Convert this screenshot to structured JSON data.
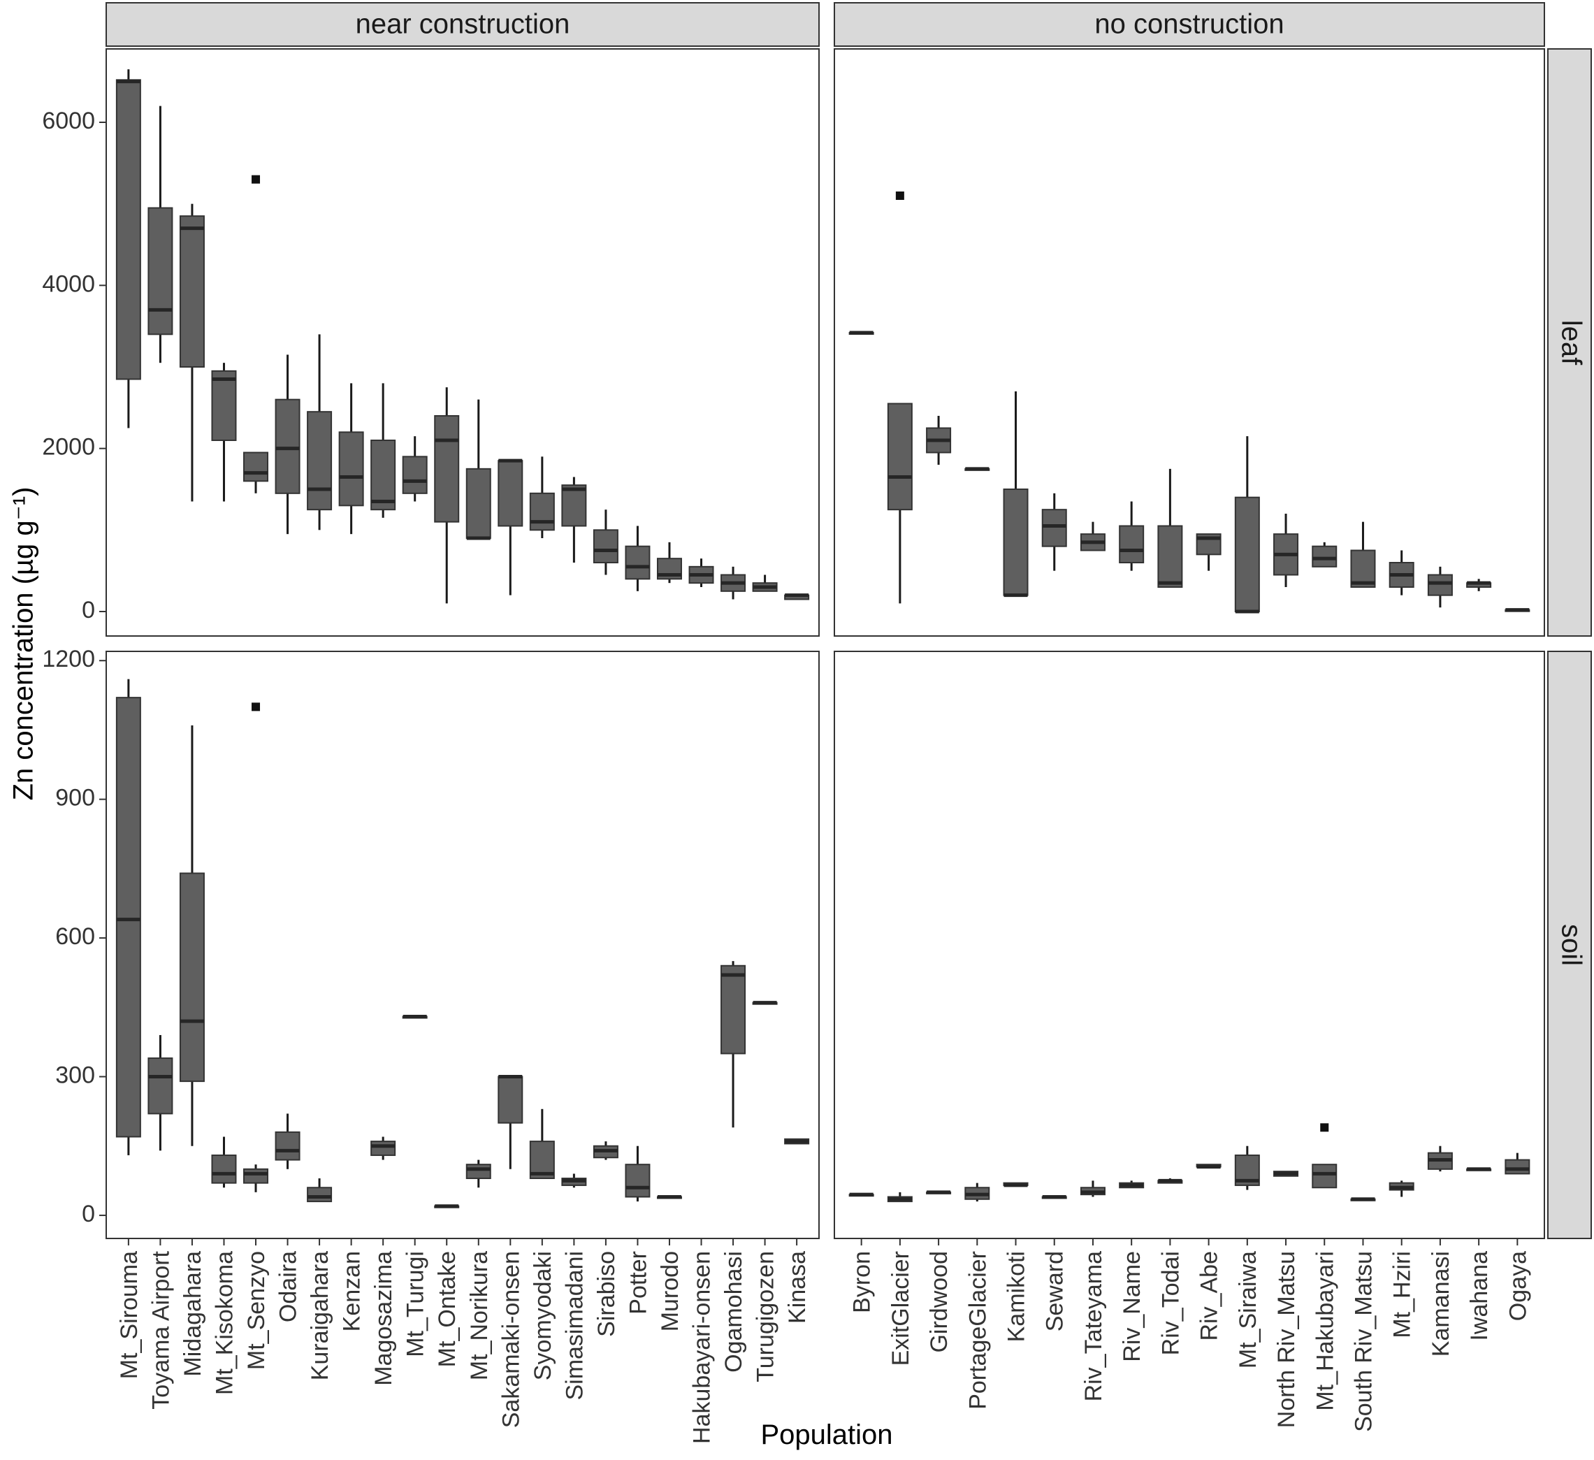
{
  "chart_data": {
    "type": "boxplot",
    "xlabel": "Population",
    "ylabel": "Zn concentration (µg g⁻¹)",
    "facet_columns": [
      "near construction",
      "no construction"
    ],
    "facet_rows": [
      "leaf",
      "soil"
    ],
    "rows": [
      {
        "label": "leaf",
        "ylim": [
          -300,
          6900
        ],
        "ticks": [
          0,
          2000,
          4000,
          6000
        ]
      },
      {
        "label": "soil",
        "ylim": [
          -50,
          1220
        ],
        "ticks": [
          0,
          300,
          600,
          900,
          1200
        ]
      }
    ],
    "columns": [
      {
        "label": "near construction",
        "categories": [
          "Mt_Sirouma",
          "Toyama Airport",
          "Midagahara",
          "Mt_Kisokoma",
          "Mt_Senzyo",
          "Odaira",
          "Kuraigahara",
          "Kenzan",
          "Magosazima",
          "Mt_Turugi",
          "Mt_Ontake",
          "Mt_Norikura",
          "Sakamaki-onsen",
          "Syomyodaki",
          "Simasimadani",
          "Sirabiso",
          "Potter",
          "Murodo",
          "Hakubayari-onsen",
          "Ogamohasi",
          "Turugigozen",
          "Kinasa"
        ],
        "leaf": [
          {
            "category": "Mt_Sirouma",
            "min": 2250,
            "q1": 2850,
            "median": 6500,
            "q3": 6520,
            "max": 6650
          },
          {
            "category": "Toyama Airport",
            "min": 3050,
            "q1": 3400,
            "median": 3700,
            "q3": 4950,
            "max": 6200
          },
          {
            "category": "Midagahara",
            "min": 1350,
            "q1": 3000,
            "median": 4700,
            "q3": 4850,
            "max": 5000
          },
          {
            "category": "Mt_Kisokoma",
            "min": 1350,
            "q1": 2100,
            "median": 2850,
            "q3": 2950,
            "max": 3050
          },
          {
            "category": "Mt_Senzyo",
            "min": 1450,
            "q1": 1600,
            "median": 1700,
            "q3": 1950,
            "max": 1950,
            "outliers": [
              5300
            ]
          },
          {
            "category": "Odaira",
            "min": 950,
            "q1": 1450,
            "median": 2000,
            "q3": 2600,
            "max": 3150
          },
          {
            "category": "Kuraigahara",
            "min": 1000,
            "q1": 1250,
            "median": 1500,
            "q3": 2450,
            "max": 3400
          },
          {
            "category": "Kenzan",
            "min": 950,
            "q1": 1300,
            "median": 1650,
            "q3": 2200,
            "max": 2800
          },
          {
            "category": "Magosazima",
            "min": 1150,
            "q1": 1250,
            "median": 1350,
            "q3": 2100,
            "max": 2800
          },
          {
            "category": "Mt_Turugi",
            "min": 1350,
            "q1": 1450,
            "median": 1600,
            "q3": 1900,
            "max": 2150
          },
          {
            "category": "Mt_Ontake",
            "min": 100,
            "q1": 1100,
            "median": 2100,
            "q3": 2400,
            "max": 2750
          },
          {
            "category": "Mt_Norikura",
            "min": 900,
            "q1": 900,
            "median": 900,
            "q3": 1750,
            "max": 2600
          },
          {
            "category": "Sakamaki-onsen",
            "min": 200,
            "q1": 1050,
            "median": 1850,
            "q3": 1850,
            "max": 1850
          },
          {
            "category": "Syomyodaki",
            "min": 900,
            "q1": 1000,
            "median": 1100,
            "q3": 1450,
            "max": 1900
          },
          {
            "category": "Simasimadani",
            "min": 600,
            "q1": 1050,
            "median": 1500,
            "q3": 1550,
            "max": 1650
          },
          {
            "category": "Sirabiso",
            "min": 450,
            "q1": 600,
            "median": 750,
            "q3": 1000,
            "max": 1250
          },
          {
            "category": "Potter",
            "min": 250,
            "q1": 400,
            "median": 550,
            "q3": 800,
            "max": 1050
          },
          {
            "category": "Murodo",
            "min": 350,
            "q1": 400,
            "median": 450,
            "q3": 650,
            "max": 850
          },
          {
            "category": "Hakubayari-onsen",
            "min": 300,
            "q1": 350,
            "median": 450,
            "q3": 550,
            "max": 650
          },
          {
            "category": "Ogamohasi",
            "min": 150,
            "q1": 250,
            "median": 350,
            "q3": 450,
            "max": 550
          },
          {
            "category": "Turugigozen",
            "min": 250,
            "q1": 250,
            "median": 300,
            "q3": 350,
            "max": 450
          },
          {
            "category": "Kinasa",
            "min": 150,
            "q1": 150,
            "median": 200,
            "q3": 200,
            "max": 200
          }
        ],
        "soil": [
          {
            "category": "Mt_Sirouma",
            "min": 130,
            "q1": 170,
            "median": 640,
            "q3": 1120,
            "max": 1160
          },
          {
            "category": "Toyama Airport",
            "min": 140,
            "q1": 220,
            "median": 300,
            "q3": 340,
            "max": 390
          },
          {
            "category": "Midagahara",
            "min": 150,
            "q1": 290,
            "median": 420,
            "q3": 740,
            "max": 1060
          },
          {
            "category": "Mt_Kisokoma",
            "min": 60,
            "q1": 70,
            "median": 90,
            "q3": 130,
            "max": 170
          },
          {
            "category": "Mt_Senzyo",
            "min": 50,
            "q1": 70,
            "median": 90,
            "q3": 100,
            "max": 110,
            "outliers": [
              1100
            ]
          },
          {
            "category": "Odaira",
            "min": 100,
            "q1": 120,
            "median": 140,
            "q3": 180,
            "max": 220
          },
          {
            "category": "Kuraigahara",
            "min": 30,
            "q1": 30,
            "median": 40,
            "q3": 60,
            "max": 80
          },
          {
            "category": "Magosazima",
            "min": 120,
            "q1": 130,
            "median": 150,
            "q3": 160,
            "max": 170
          },
          {
            "category": "Mt_Turugi",
            "min": 430,
            "q1": 430,
            "median": 430,
            "q3": 430,
            "max": 430
          },
          {
            "category": "Mt_Ontake",
            "min": 20,
            "q1": 20,
            "median": 20,
            "q3": 20,
            "max": 20
          },
          {
            "category": "Mt_Norikura",
            "min": 60,
            "q1": 80,
            "median": 100,
            "q3": 110,
            "max": 120
          },
          {
            "category": "Sakamaki-onsen",
            "min": 100,
            "q1": 200,
            "median": 300,
            "q3": 300,
            "max": 300
          },
          {
            "category": "Syomyodaki",
            "min": 80,
            "q1": 80,
            "median": 90,
            "q3": 160,
            "max": 230
          },
          {
            "category": "Simasimadani",
            "min": 60,
            "q1": 65,
            "median": 75,
            "q3": 80,
            "max": 90
          },
          {
            "category": "Sirabiso",
            "min": 120,
            "q1": 125,
            "median": 140,
            "q3": 150,
            "max": 160
          },
          {
            "category": "Potter",
            "min": 30,
            "q1": 40,
            "median": 60,
            "q3": 110,
            "max": 150
          },
          {
            "category": "Murodo",
            "min": 40,
            "q1": 40,
            "median": 40,
            "q3": 40,
            "max": 40
          },
          {
            "category": "Ogamohasi",
            "min": 190,
            "q1": 350,
            "median": 520,
            "q3": 540,
            "max": 550
          },
          {
            "category": "Turugigozen",
            "min": 460,
            "q1": 460,
            "median": 460,
            "q3": 460,
            "max": 460
          },
          {
            "category": "Kinasa",
            "min": 155,
            "q1": 155,
            "median": 160,
            "q3": 165,
            "max": 165
          }
        ]
      },
      {
        "label": "no construction",
        "categories": [
          "Byron",
          "ExitGlacier",
          "Girdwood",
          "PortageGlacier",
          "Kamikoti",
          "Seward",
          "Riv_Tateyama",
          "Riv_Name",
          "Riv_Todai",
          "Riv_Abe",
          "Mt_Siraiwa",
          "North Riv_Matsu",
          "Mt_Hakubayari",
          "South Riv_Matsu",
          "Mt_Hziri",
          "Kamanasi",
          "Iwahana",
          "Ogaya"
        ],
        "leaf": [
          {
            "category": "Byron",
            "min": 3420,
            "q1": 3420,
            "median": 3420,
            "q3": 3420,
            "max": 3420
          },
          {
            "category": "ExitGlacier",
            "min": 100,
            "q1": 1250,
            "median": 1650,
            "q3": 2550,
            "max": 2550,
            "outliers": [
              5100
            ]
          },
          {
            "category": "Girdwood",
            "min": 1800,
            "q1": 1950,
            "median": 2100,
            "q3": 2250,
            "max": 2400
          },
          {
            "category": "PortageGlacier",
            "min": 1750,
            "q1": 1750,
            "median": 1750,
            "q3": 1750,
            "max": 1750
          },
          {
            "category": "Kamikoti",
            "min": 200,
            "q1": 200,
            "median": 200,
            "q3": 1500,
            "max": 2700
          },
          {
            "category": "Seward",
            "min": 500,
            "q1": 800,
            "median": 1050,
            "q3": 1250,
            "max": 1450
          },
          {
            "category": "Riv_Tateyama",
            "min": 750,
            "q1": 750,
            "median": 850,
            "q3": 950,
            "max": 1100
          },
          {
            "category": "Riv_Name",
            "min": 500,
            "q1": 600,
            "median": 750,
            "q3": 1050,
            "max": 1350
          },
          {
            "category": "Riv_Todai",
            "min": 300,
            "q1": 300,
            "median": 350,
            "q3": 1050,
            "max": 1750
          },
          {
            "category": "Riv_Abe",
            "min": 500,
            "q1": 700,
            "median": 900,
            "q3": 950,
            "max": 950
          },
          {
            "category": "Mt_Siraiwa",
            "min": 0,
            "q1": 0,
            "median": 0,
            "q3": 1400,
            "max": 2150
          },
          {
            "category": "North Riv_Matsu",
            "min": 300,
            "q1": 450,
            "median": 700,
            "q3": 950,
            "max": 1200
          },
          {
            "category": "Mt_Hakubayari",
            "min": 550,
            "q1": 550,
            "median": 650,
            "q3": 800,
            "max": 850
          },
          {
            "category": "South Riv_Matsu",
            "min": 300,
            "q1": 300,
            "median": 350,
            "q3": 750,
            "max": 1100
          },
          {
            "category": "Mt_Hziri",
            "min": 200,
            "q1": 300,
            "median": 450,
            "q3": 600,
            "max": 750
          },
          {
            "category": "Kamanasi",
            "min": 50,
            "q1": 200,
            "median": 350,
            "q3": 450,
            "max": 550
          },
          {
            "category": "Iwahana",
            "min": 250,
            "q1": 300,
            "median": 350,
            "q3": 350,
            "max": 400
          },
          {
            "category": "Ogaya",
            "min": 20,
            "q1": 20,
            "median": 20,
            "q3": 20,
            "max": 20
          }
        ],
        "soil": [
          {
            "category": "Byron",
            "min": 45,
            "q1": 45,
            "median": 45,
            "q3": 45,
            "max": 45
          },
          {
            "category": "ExitGlacier",
            "min": 30,
            "q1": 30,
            "median": 35,
            "q3": 40,
            "max": 50
          },
          {
            "category": "Girdwood",
            "min": 50,
            "q1": 50,
            "median": 50,
            "q3": 50,
            "max": 50
          },
          {
            "category": "PortageGlacier",
            "min": 30,
            "q1": 35,
            "median": 45,
            "q3": 60,
            "max": 70
          },
          {
            "category": "Kamikoti",
            "min": 65,
            "q1": 65,
            "median": 65,
            "q3": 70,
            "max": 70
          },
          {
            "category": "Seward",
            "min": 40,
            "q1": 40,
            "median": 40,
            "q3": 40,
            "max": 40
          },
          {
            "category": "Riv_Tateyama",
            "min": 40,
            "q1": 45,
            "median": 50,
            "q3": 60,
            "max": 75
          },
          {
            "category": "Riv_Name",
            "min": 60,
            "q1": 60,
            "median": 65,
            "q3": 70,
            "max": 75
          },
          {
            "category": "Riv_Todai",
            "min": 70,
            "q1": 70,
            "median": 75,
            "q3": 75,
            "max": 80
          },
          {
            "category": "Riv_Abe",
            "min": 105,
            "q1": 105,
            "median": 105,
            "q3": 110,
            "max": 110
          },
          {
            "category": "Mt_Siraiwa",
            "min": 55,
            "q1": 65,
            "median": 75,
            "q3": 130,
            "max": 150
          },
          {
            "category": "North Riv_Matsu",
            "min": 85,
            "q1": 85,
            "median": 90,
            "q3": 95,
            "max": 95
          },
          {
            "category": "Mt_Hakubayari",
            "min": 60,
            "q1": 60,
            "median": 90,
            "q3": 110,
            "max": 110,
            "outliers": [
              190
            ]
          },
          {
            "category": "South Riv_Matsu",
            "min": 35,
            "q1": 35,
            "median": 35,
            "q3": 35,
            "max": 35
          },
          {
            "category": "Mt_Hziri",
            "min": 40,
            "q1": 55,
            "median": 60,
            "q3": 70,
            "max": 75
          },
          {
            "category": "Kamanasi",
            "min": 95,
            "q1": 100,
            "median": 120,
            "q3": 135,
            "max": 150
          },
          {
            "category": "Iwahana",
            "min": 100,
            "q1": 100,
            "median": 100,
            "q3": 100,
            "max": 100
          },
          {
            "category": "Ogaya",
            "min": 90,
            "q1": 90,
            "median": 100,
            "q3": 120,
            "max": 135
          }
        ]
      }
    ]
  }
}
